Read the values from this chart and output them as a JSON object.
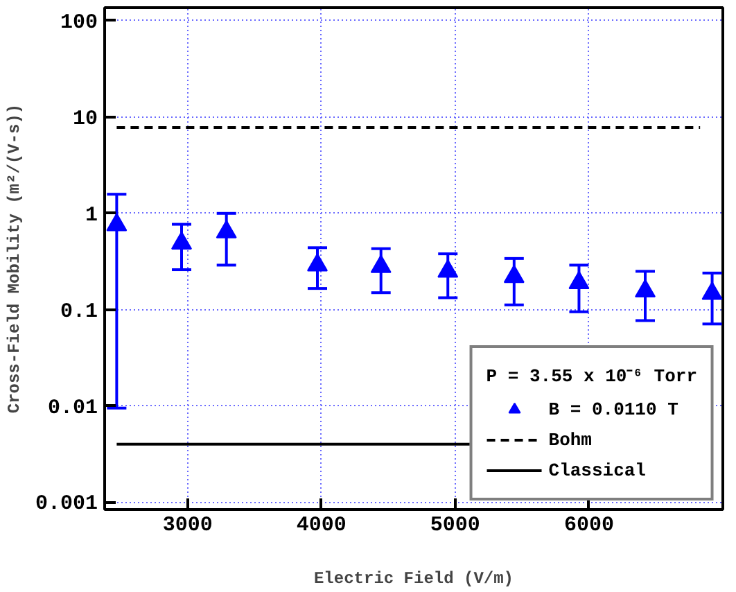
{
  "chart_data": {
    "type": "scatter",
    "xlabel": "Electric Field (V/m)",
    "ylabel": "Cross-Field Mobility (m²/(V-s))",
    "legend_title": "P = 3.55 x 10⁻⁶ Torr",
    "x": [
      2470,
      2955,
      3290,
      3970,
      4445,
      4945,
      5440,
      5925,
      6420,
      6920
    ],
    "series": [
      {
        "name": "B = 0.0110 T",
        "color": "#0000ff",
        "marker": "triangle",
        "values": [
          0.76,
          0.49,
          0.64,
          0.29,
          0.28,
          0.25,
          0.22,
          0.19,
          0.156,
          0.147
        ],
        "errors": [
          [
            0.0095,
            1.58
          ],
          [
            0.26,
            0.77
          ],
          [
            0.29,
            1.0
          ],
          [
            0.166,
            0.44
          ],
          [
            0.15,
            0.43
          ],
          [
            0.133,
            0.38
          ],
          [
            0.112,
            0.34
          ],
          [
            0.095,
            0.29
          ],
          [
            0.077,
            0.25
          ],
          [
            0.071,
            0.24
          ]
        ]
      },
      {
        "name": "Bohm",
        "type": "line",
        "color": "#000000",
        "line_style": "dashed",
        "marker": "none",
        "x": [
          2470,
          6830
        ],
        "values": [
          7.8,
          7.8
        ]
      },
      {
        "name": "Classical",
        "type": "line",
        "color": "#000000",
        "line_style": "solid",
        "marker": "none",
        "x": [
          2470,
          6920
        ],
        "values": [
          0.004,
          0.004
        ]
      }
    ],
    "xlim": [
      2380,
      7000
    ],
    "ylim": [
      0.00084,
      137
    ],
    "xticks": [
      3000,
      4000,
      5000,
      6000
    ],
    "yticks": [
      0.001,
      0.01,
      0.1,
      1,
      10,
      100
    ],
    "log": "y",
    "grid": true,
    "legend": "bottom right"
  }
}
